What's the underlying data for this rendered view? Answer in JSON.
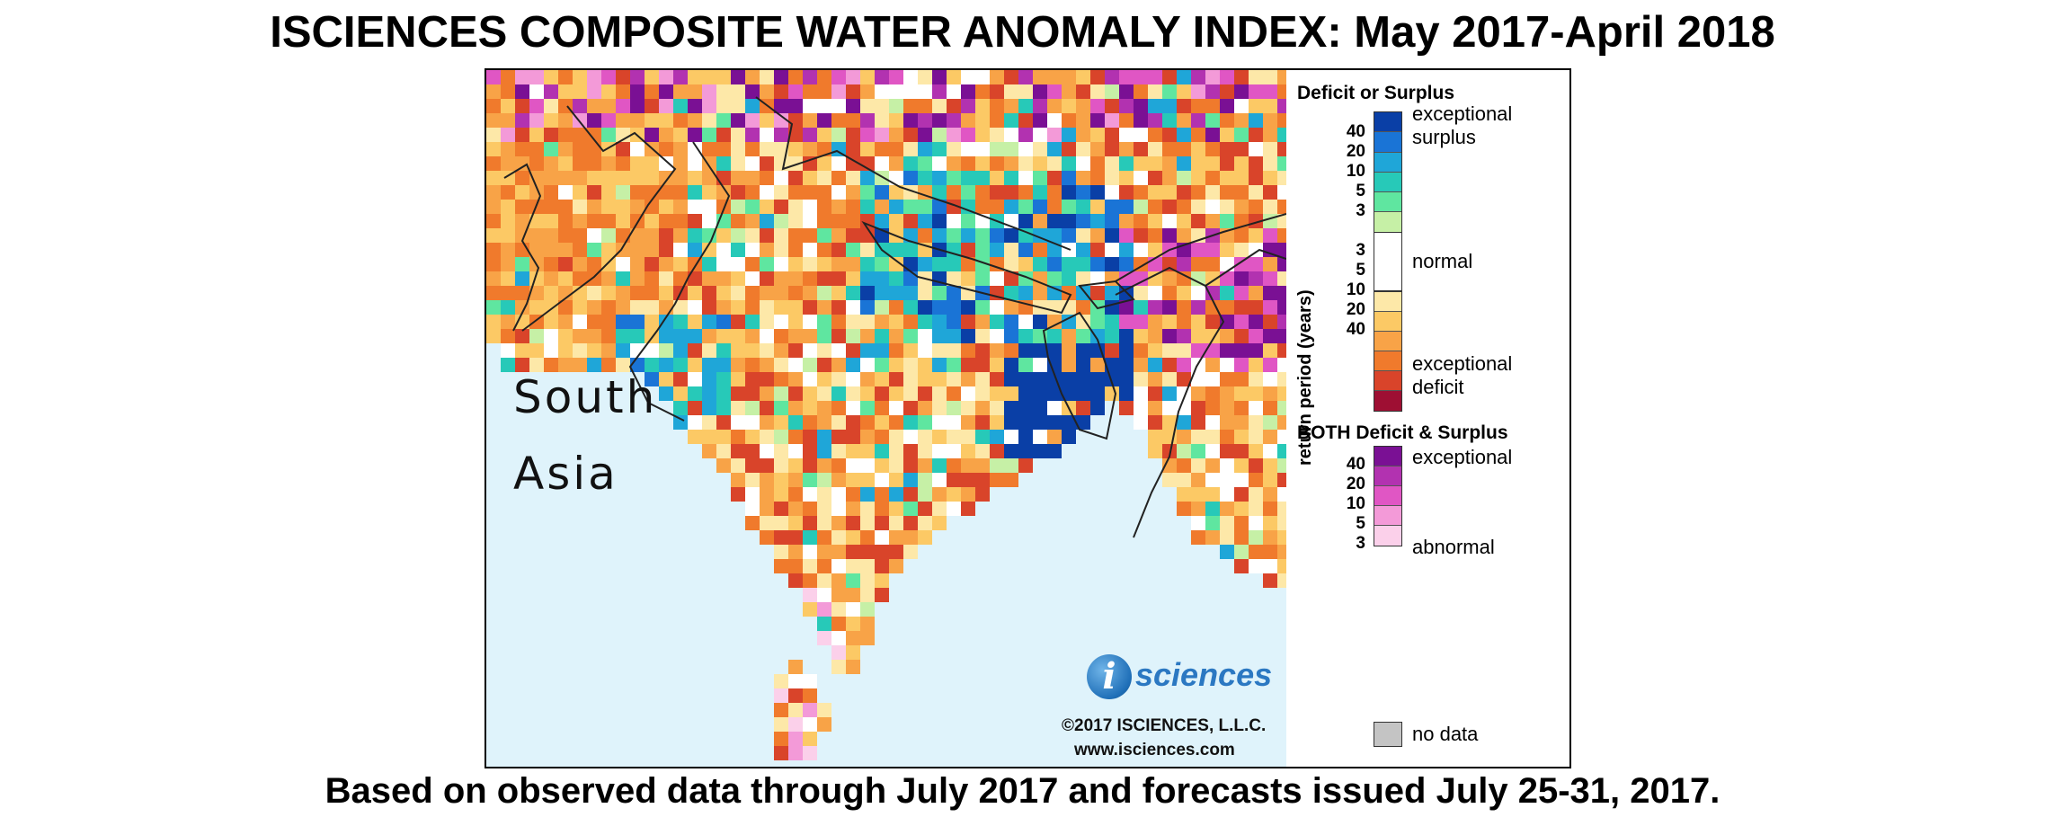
{
  "title": "ISCIENCES COMPOSITE WATER ANOMALY INDEX: May 2017-April 2018",
  "footer": "Based on observed data through July 2017 and forecasts issued July 25-31, 2017.",
  "map": {
    "region_label_line1": "South",
    "region_label_line2": "Asia",
    "logo_letter": "i",
    "logo_text": "sciences",
    "copyright": "©2017 ISCIENCES, L.L.C.",
    "website": "www.isciences.com"
  },
  "legend": {
    "section1_title": "Deficit or Surplus",
    "axis_label": "return period (years)",
    "surplus_label_1": "exceptional",
    "surplus_label_2": "surplus",
    "normal_label": "normal",
    "deficit_label_1": "exceptional",
    "deficit_label_2": "deficit",
    "surplus_ticks": [
      "40",
      "20",
      "10",
      "5",
      "3"
    ],
    "deficit_ticks": [
      "3",
      "5",
      "10",
      "20",
      "40"
    ],
    "section2_title": "BOTH Deficit & Surplus",
    "both_label_top": "exceptional",
    "both_label_bottom": "abnormal",
    "both_ticks": [
      "40",
      "20",
      "10",
      "5",
      "3"
    ],
    "nodata_label": "no data"
  },
  "colors": {
    "surplus": [
      "#0a3fa6",
      "#1a74d6",
      "#1fa6d8",
      "#27c9b8",
      "#5fe6a0",
      "#c6f0a6"
    ],
    "normal": "#ffffff",
    "deficit": [
      "#fde8a8",
      "#fcc965",
      "#f8a347",
      "#f07a2c",
      "#d9442a",
      "#9e0f33"
    ],
    "both": [
      "#7a1094",
      "#b232b0",
      "#e056c4",
      "#f39ad8",
      "#fbd0ea"
    ],
    "nodata": "#c4c4c4",
    "ocean": "#dff3fb"
  }
}
